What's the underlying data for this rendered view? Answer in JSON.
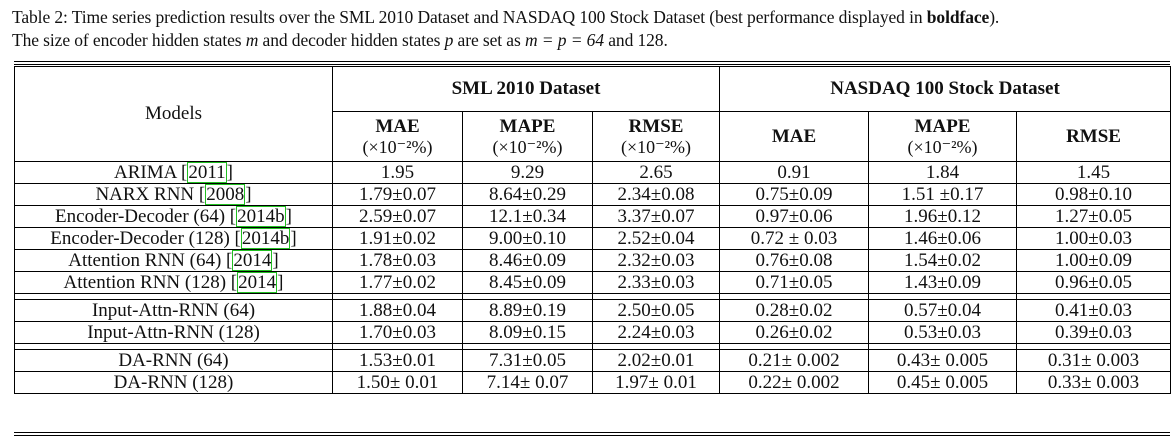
{
  "caption": {
    "prefix": "Table 2: Time series prediction results over the SML 2010 Dataset and NASDAQ 100 Stock Dataset (best performance displayed in ",
    "bold_word": "boldface",
    "suffix1": ").",
    "line2_a": "The size of encoder hidden states ",
    "m": "m",
    "line2_b": " and decoder hidden states ",
    "p": "p",
    "line2_c": " are set as ",
    "eq": "m = p = 64",
    "line2_d": " and 128."
  },
  "header": {
    "models": "Models",
    "group1": "SML 2010 Dataset",
    "group2": "NASDAQ 100 Stock Dataset",
    "metrics": [
      {
        "name": "MAE",
        "unit": "(×10⁻²%)"
      },
      {
        "name": "MAPE",
        "unit": "(×10⁻²%)"
      },
      {
        "name": "RMSE",
        "unit": "(×10⁻²%)"
      },
      {
        "name": "MAE",
        "unit": ""
      },
      {
        "name": "MAPE",
        "unit": "(×10⁻²%)"
      },
      {
        "name": "RMSE",
        "unit": ""
      }
    ]
  },
  "rows": [
    {
      "model": "ARIMA [",
      "ref": "2011",
      "tail": "]",
      "v": [
        "1.95",
        "9.29",
        "2.65",
        "0.91",
        "1.84",
        "1.45"
      ]
    },
    {
      "model": "NARX RNN [",
      "ref": "2008",
      "tail": "]",
      "v": [
        "1.79±0.07",
        "8.64±0.29",
        "2.34±0.08",
        "0.75±0.09",
        "1.51 ±0.17",
        "0.98±0.10"
      ]
    },
    {
      "model": "Encoder-Decoder (64) [",
      "ref": "2014b",
      "tail": "]",
      "v": [
        "2.59±0.07",
        "12.1±0.34",
        "3.37±0.07",
        "0.97±0.06",
        "1.96±0.12",
        "1.27±0.05"
      ]
    },
    {
      "model": "Encoder-Decoder (128) [",
      "ref": "2014b",
      "tail": "]",
      "v": [
        "1.91±0.02",
        "9.00±0.10",
        "2.52±0.04",
        "0.72 ± 0.03",
        "1.46±0.06",
        "1.00±0.03"
      ]
    },
    {
      "model": "Attention RNN (64) [",
      "ref": "2014",
      "tail": "]",
      "v": [
        "1.78±0.03",
        "8.46±0.09",
        "2.32±0.03",
        "0.76±0.08",
        "1.54±0.02",
        "1.00±0.09"
      ]
    },
    {
      "model": "Attention RNN (128) [",
      "ref": "2014",
      "tail": "]",
      "v": [
        "1.77±0.02",
        "8.45±0.09",
        "2.33±0.03",
        "0.71±0.05",
        "1.43±0.09",
        "0.96±0.05"
      ]
    },
    {
      "model": "Input-Attn-RNN (64)",
      "ref": "",
      "tail": "",
      "v": [
        "1.88±0.04",
        "8.89±0.19",
        "2.50±0.05",
        "0.28±0.02",
        "0.57±0.04",
        "0.41±0.03"
      ]
    },
    {
      "model": "Input-Attn-RNN (128)",
      "ref": "",
      "tail": "",
      "v": [
        "1.70±0.03",
        "8.09±0.15",
        "2.24±0.03",
        "0.26±0.02",
        "0.53±0.03",
        "0.39±0.03"
      ]
    },
    {
      "model": "DA-RNN (64)",
      "ref": "",
      "tail": "",
      "v": [
        "1.53±0.01",
        "7.31±0.05",
        "2.02±0.01",
        "0.21± 0.002",
        "0.43± 0.005",
        "0.31± 0.003"
      ],
      "bold": [
        false,
        false,
        false,
        true,
        true,
        true
      ]
    },
    {
      "model": "DA-RNN (128)",
      "ref": "",
      "tail": "",
      "v": [
        "1.50± 0.01",
        "7.14± 0.07",
        "1.97± 0.01",
        "0.22± 0.002",
        "0.45± 0.005",
        "0.33± 0.003"
      ],
      "bold": [
        true,
        true,
        true,
        false,
        false,
        false
      ]
    }
  ],
  "colors": {
    "citation_box": "#22c022",
    "text": "#111111"
  }
}
